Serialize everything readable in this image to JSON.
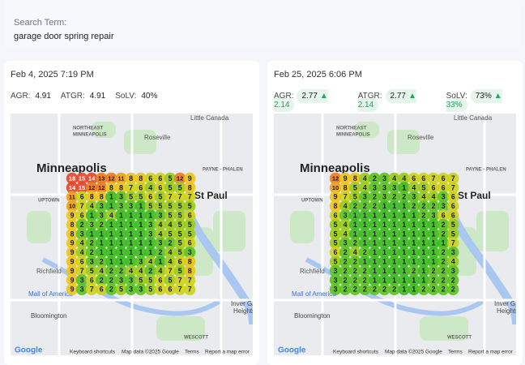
{
  "search": {
    "label": "Search Term:",
    "value": "garage door spring repair"
  },
  "map": {
    "labels": [
      "Little Canada",
      "NORTHEAST",
      "MINNEAPOLIS",
      "Roseville",
      "PAYNE - PHALEN",
      "Minneapolis",
      "UPTOWN",
      "St Paul",
      "Richfield",
      "Mall of America",
      "Bloomington",
      "Inver Grove",
      "Heights",
      "WESCOTT",
      "Google"
    ],
    "footer": [
      "Keyboard shortcuts",
      "Map data ©2025 Google",
      "Terms",
      "Report a map error"
    ]
  },
  "panels": [
    {
      "date": "Feb 4, 2025 7:19 PM",
      "metrics": [
        {
          "label": "AGR:",
          "value": "4.91"
        },
        {
          "label": "ATGR:",
          "value": "4.91"
        },
        {
          "label": "SoLV:",
          "value": "40%"
        }
      ],
      "grid": [
        [
          18,
          15,
          14,
          13,
          12,
          11,
          8,
          8,
          6,
          6,
          5,
          12,
          9
        ],
        [
          14,
          15,
          12,
          12,
          8,
          8,
          7,
          6,
          4,
          6,
          5,
          5,
          8
        ],
        [
          11,
          6,
          8,
          8,
          1,
          3,
          5,
          5,
          6,
          5,
          7,
          7,
          7
        ],
        [
          10,
          7,
          4,
          3,
          1,
          3,
          3,
          1,
          5,
          5,
          5,
          5,
          5
        ],
        [
          9,
          6,
          1,
          3,
          4,
          1,
          1,
          1,
          1,
          3,
          5,
          5,
          6
        ],
        [
          8,
          2,
          3,
          2,
          1,
          1,
          1,
          1,
          3,
          4,
          4,
          5,
          5
        ],
        [
          8,
          3,
          1,
          1,
          1,
          1,
          1,
          1,
          3,
          4,
          5,
          5,
          5
        ],
        [
          9,
          4,
          2,
          1,
          1,
          1,
          1,
          1,
          1,
          3,
          2,
          5,
          6
        ],
        [
          9,
          4,
          2,
          1,
          1,
          1,
          1,
          1,
          1,
          2,
          4,
          5,
          3
        ],
        [
          9,
          6,
          3,
          2,
          1,
          1,
          1,
          3,
          4,
          1,
          4,
          6,
          8
        ],
        [
          9,
          7,
          5,
          4,
          2,
          2,
          4,
          4,
          2,
          4,
          7,
          5,
          8
        ],
        [
          9,
          3,
          6,
          2,
          2,
          3,
          3,
          5,
          5,
          6,
          5,
          7,
          7
        ],
        [
          9,
          3,
          7,
          6,
          2,
          5,
          3,
          3,
          5,
          6,
          6,
          7,
          7
        ]
      ]
    },
    {
      "date": "Feb 25, 2025 6:06 PM",
      "metrics": [
        {
          "label": "AGR:",
          "value": "2.77",
          "change": "▲ 2.14"
        },
        {
          "label": "ATGR:",
          "value": "2.77",
          "change": "▲ 2.14"
        },
        {
          "label": "SoLV:",
          "value": "73%",
          "change": "▲ 33%"
        }
      ],
      "grid": [
        [
          12,
          9,
          8,
          4,
          2,
          3,
          4,
          4,
          6,
          6,
          7,
          6,
          7
        ],
        [
          10,
          8,
          5,
          4,
          3,
          3,
          3,
          1,
          4,
          5,
          6,
          6,
          7
        ],
        [
          9,
          7,
          5,
          3,
          2,
          3,
          2,
          2,
          3,
          4,
          4,
          3,
          6
        ],
        [
          8,
          4,
          2,
          2,
          2,
          1,
          1,
          1,
          2,
          2,
          2,
          3,
          6
        ],
        [
          6,
          3,
          1,
          1,
          1,
          1,
          1,
          1,
          1,
          2,
          3,
          6,
          6
        ],
        [
          5,
          4,
          1,
          1,
          1,
          1,
          1,
          1,
          1,
          1,
          1,
          2,
          5
        ],
        [
          5,
          4,
          1,
          1,
          1,
          1,
          1,
          1,
          1,
          1,
          1,
          2,
          5
        ],
        [
          5,
          3,
          2,
          1,
          1,
          1,
          1,
          1,
          1,
          1,
          1,
          1,
          7
        ],
        [
          6,
          2,
          4,
          2,
          1,
          1,
          1,
          1,
          1,
          1,
          1,
          2,
          3
        ],
        [
          5,
          2,
          2,
          1,
          1,
          1,
          1,
          1,
          1,
          1,
          1,
          2,
          4
        ],
        [
          3,
          2,
          2,
          2,
          1,
          1,
          1,
          1,
          2,
          1,
          2,
          2,
          3
        ],
        [
          3,
          2,
          2,
          2,
          1,
          1,
          1,
          1,
          1,
          1,
          2,
          2,
          2
        ],
        [
          3,
          2,
          2,
          2,
          2,
          2,
          2,
          1,
          1,
          2,
          2,
          2,
          2
        ]
      ]
    }
  ]
}
